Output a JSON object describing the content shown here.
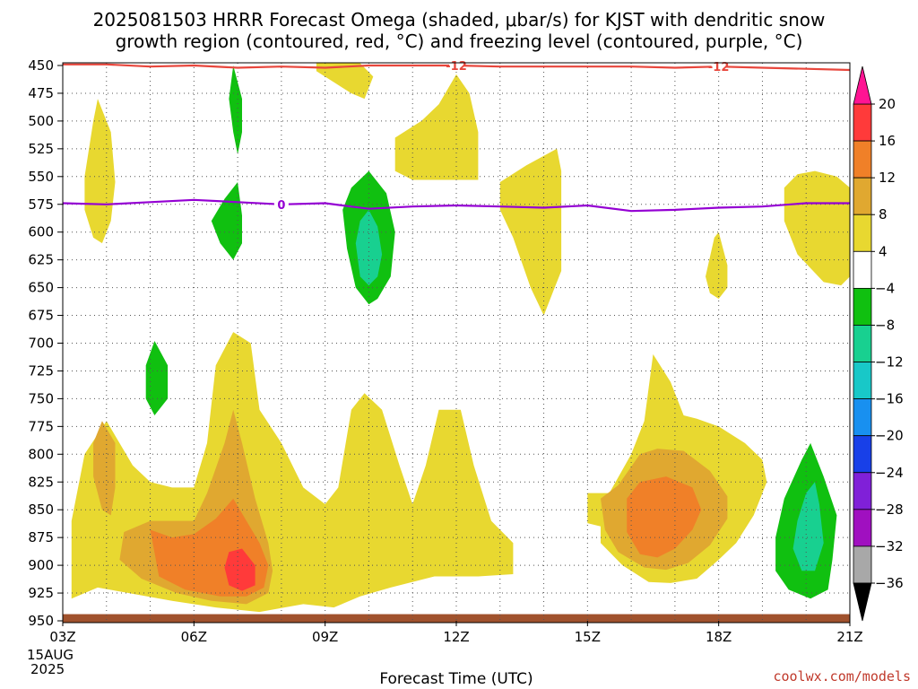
{
  "chart_data": {
    "type": "contour",
    "title_line1": "2025081503 HRRR Forecast Omega (shaded, μbar/s) for KJST with dendritic snow",
    "title_line2": "growth region (contoured, red, °C) and freezing level (contoured, purple, °C)",
    "xlabel": "Forecast Time (UTC)",
    "ylabel": "",
    "y_axis": {
      "scale": "pressure (hPa), inverted",
      "ylim": [
        950,
        450
      ],
      "ticks": [
        450,
        475,
        500,
        525,
        550,
        575,
        600,
        625,
        650,
        675,
        700,
        725,
        750,
        775,
        800,
        825,
        850,
        875,
        900,
        925,
        950
      ]
    },
    "x_axis": {
      "xlim_hours": [
        3,
        21
      ],
      "ticks": [
        {
          "hour": 3,
          "label": "03Z"
        },
        {
          "hour": 6,
          "label": "06Z"
        },
        {
          "hour": 9,
          "label": "09Z"
        },
        {
          "hour": 12,
          "label": "12Z"
        },
        {
          "hour": 15,
          "label": "15Z"
        },
        {
          "hour": 18,
          "label": "18Z"
        },
        {
          "hour": 21,
          "label": "21Z"
        }
      ],
      "date_line1": "15AUG",
      "date_line2": "2025"
    },
    "grid": true,
    "colorbar": {
      "placement": "right",
      "levels": [
        20,
        16,
        12,
        8,
        4,
        -4,
        -8,
        -12,
        -16,
        -20,
        -24,
        -28,
        -32,
        -36
      ],
      "colors": [
        "#ff3a3a",
        "#f08028",
        "#e0a830",
        "#e8d830",
        "#ffffff",
        "#10c010",
        "#18d090",
        "#18c8c8",
        "#1890f0",
        "#1840e8",
        "#8020d8",
        "#a010c0",
        "#a8a8a8"
      ],
      "top_arrow_color": "#ff1493",
      "bottom_arrow_color": "#000000"
    },
    "freezing_level": {
      "label": "0",
      "color": "#9400d3",
      "points": [
        [
          3,
          574
        ],
        [
          4,
          575
        ],
        [
          5,
          573
        ],
        [
          6,
          571
        ],
        [
          7,
          573
        ],
        [
          8,
          575
        ],
        [
          9,
          574
        ],
        [
          10,
          579
        ],
        [
          11,
          577
        ],
        [
          12,
          576
        ],
        [
          13,
          577
        ],
        [
          14,
          578
        ],
        [
          15,
          576
        ],
        [
          16,
          581
        ],
        [
          17,
          580
        ],
        [
          18,
          578
        ],
        [
          19,
          577
        ],
        [
          20,
          574
        ],
        [
          21,
          574
        ]
      ]
    },
    "dgz_line": {
      "label": "-12",
      "color": "#e8463c",
      "points": [
        [
          3,
          449
        ],
        [
          4,
          449
        ],
        [
          5,
          451
        ],
        [
          6,
          450
        ],
        [
          7,
          452
        ],
        [
          8,
          451
        ],
        [
          9,
          452
        ],
        [
          10,
          450
        ],
        [
          11,
          450
        ],
        [
          12,
          450
        ],
        [
          13,
          451
        ],
        [
          14,
          451
        ],
        [
          15,
          451
        ],
        [
          16,
          451
        ],
        [
          17,
          452
        ],
        [
          18,
          451
        ],
        [
          19,
          452
        ],
        [
          20,
          453
        ],
        [
          21,
          454
        ]
      ]
    },
    "omega_regions": [
      {
        "level": 4,
        "color": "#e8d830",
        "pts": [
          [
            3.2,
            930
          ],
          [
            3.2,
            860
          ],
          [
            3.5,
            800
          ],
          [
            4,
            770
          ],
          [
            4.6,
            810
          ],
          [
            5,
            825
          ],
          [
            5.5,
            830
          ],
          [
            6,
            830
          ],
          [
            6.3,
            790
          ],
          [
            6.5,
            720
          ],
          [
            6.9,
            690
          ],
          [
            7.3,
            700
          ],
          [
            7.5,
            760
          ],
          [
            8,
            790
          ],
          [
            8.5,
            830
          ],
          [
            9,
            845
          ],
          [
            9.3,
            830
          ],
          [
            9.6,
            760
          ],
          [
            9.9,
            745
          ],
          [
            10.3,
            760
          ],
          [
            10.7,
            810
          ],
          [
            11,
            845
          ],
          [
            11.3,
            810
          ],
          [
            11.6,
            760
          ],
          [
            12.1,
            760
          ],
          [
            12.4,
            810
          ],
          [
            12.8,
            860
          ],
          [
            13.3,
            880
          ],
          [
            13.3,
            908
          ],
          [
            12.5,
            910
          ],
          [
            11.5,
            910
          ],
          [
            10.5,
            920
          ],
          [
            9.8,
            928
          ],
          [
            9.2,
            938
          ],
          [
            8.5,
            935
          ],
          [
            7.5,
            942
          ],
          [
            6.5,
            938
          ],
          [
            5.5,
            932
          ],
          [
            4.5,
            925
          ],
          [
            3.8,
            920
          ]
        ]
      },
      {
        "level": 8,
        "color": "#e0a830",
        "pts": [
          [
            4.4,
            870
          ],
          [
            5,
            860
          ],
          [
            6,
            860
          ],
          [
            6.3,
            835
          ],
          [
            6.7,
            790
          ],
          [
            6.9,
            760
          ],
          [
            7.1,
            790
          ],
          [
            7.4,
            840
          ],
          [
            7.7,
            880
          ],
          [
            7.8,
            905
          ],
          [
            7.7,
            925
          ],
          [
            7.2,
            935
          ],
          [
            6.4,
            932
          ],
          [
            5.6,
            925
          ],
          [
            4.8,
            912
          ],
          [
            4.3,
            895
          ]
        ]
      },
      {
        "level": 12,
        "color": "#f08028",
        "pts": [
          [
            5,
            868
          ],
          [
            5.5,
            875
          ],
          [
            6,
            872
          ],
          [
            6.5,
            858
          ],
          [
            6.9,
            840
          ],
          [
            7.2,
            860
          ],
          [
            7.5,
            880
          ],
          [
            7.7,
            900
          ],
          [
            7.6,
            920
          ],
          [
            7.2,
            928
          ],
          [
            6.6,
            928
          ],
          [
            5.8,
            922
          ],
          [
            5.2,
            910
          ]
        ]
      },
      {
        "level": 16,
        "color": "#ff3a3a",
        "pts": [
          [
            6.8,
            888
          ],
          [
            7.1,
            885
          ],
          [
            7.4,
            900
          ],
          [
            7.4,
            918
          ],
          [
            7.1,
            923
          ],
          [
            6.8,
            918
          ],
          [
            6.7,
            902
          ]
        ]
      },
      {
        "level": 8,
        "color": "#e0a830",
        "pts": [
          [
            3.7,
            790
          ],
          [
            3.9,
            770
          ],
          [
            4.2,
            790
          ],
          [
            4.2,
            830
          ],
          [
            4.1,
            855
          ],
          [
            3.9,
            850
          ],
          [
            3.7,
            820
          ]
        ]
      },
      {
        "level": 4,
        "color": "#e8d830",
        "pts": [
          [
            15,
            835
          ],
          [
            15.5,
            835
          ],
          [
            16,
            800
          ],
          [
            16.3,
            770
          ],
          [
            16.5,
            710
          ],
          [
            16.9,
            735
          ],
          [
            17.2,
            765
          ],
          [
            17.5,
            768
          ],
          [
            18,
            775
          ],
          [
            18.6,
            790
          ],
          [
            19,
            805
          ],
          [
            19.1,
            825
          ],
          [
            18.8,
            855
          ],
          [
            18.4,
            880
          ],
          [
            18,
            895
          ],
          [
            17.5,
            912
          ],
          [
            16.9,
            916
          ],
          [
            16.4,
            915
          ],
          [
            15.8,
            900
          ],
          [
            15.3,
            880
          ],
          [
            15.3,
            865
          ],
          [
            15,
            862
          ]
        ]
      },
      {
        "level": 8,
        "color": "#e0a830",
        "pts": [
          [
            15.3,
            840
          ],
          [
            15.7,
            828
          ],
          [
            16.2,
            800
          ],
          [
            16.6,
            795
          ],
          [
            17.2,
            797
          ],
          [
            17.8,
            815
          ],
          [
            18.2,
            838
          ],
          [
            18.2,
            858
          ],
          [
            17.8,
            882
          ],
          [
            17.3,
            898
          ],
          [
            16.8,
            904
          ],
          [
            16.3,
            902
          ],
          [
            15.7,
            888
          ],
          [
            15.4,
            868
          ]
        ]
      },
      {
        "level": 12,
        "color": "#f08028",
        "pts": [
          [
            15.9,
            840
          ],
          [
            16.2,
            825
          ],
          [
            16.8,
            820
          ],
          [
            17.4,
            830
          ],
          [
            17.6,
            850
          ],
          [
            17.4,
            868
          ],
          [
            17,
            885
          ],
          [
            16.6,
            893
          ],
          [
            16.2,
            890
          ],
          [
            15.9,
            870
          ]
        ]
      },
      {
        "level": 4,
        "color": "#e8d830",
        "pts": [
          [
            3.5,
            550
          ],
          [
            3.7,
            500
          ],
          [
            3.8,
            480
          ],
          [
            4.1,
            510
          ],
          [
            4.2,
            555
          ],
          [
            4.1,
            590
          ],
          [
            3.9,
            610
          ],
          [
            3.7,
            605
          ],
          [
            3.5,
            580
          ]
        ]
      },
      {
        "level": 4,
        "color": "#e8d830",
        "pts": [
          [
            8.8,
            448
          ],
          [
            9.8,
            448
          ],
          [
            10.1,
            460
          ],
          [
            9.9,
            480
          ],
          [
            9.6,
            475
          ],
          [
            9.2,
            465
          ],
          [
            8.8,
            455
          ]
        ]
      },
      {
        "level": 4,
        "color": "#e8d830",
        "pts": [
          [
            10.6,
            515
          ],
          [
            11.2,
            500
          ],
          [
            11.6,
            485
          ],
          [
            12,
            458
          ],
          [
            12.3,
            475
          ],
          [
            12.5,
            510
          ],
          [
            12.5,
            553
          ],
          [
            11.8,
            553
          ],
          [
            11,
            553
          ],
          [
            10.6,
            545
          ]
        ]
      },
      {
        "level": 4,
        "color": "#e8d830",
        "pts": [
          [
            13,
            555
          ],
          [
            13.6,
            540
          ],
          [
            14.3,
            525
          ],
          [
            14.4,
            545
          ],
          [
            14.4,
            590
          ],
          [
            14.4,
            635
          ],
          [
            14.2,
            655
          ],
          [
            14,
            675
          ],
          [
            13.7,
            650
          ],
          [
            13.3,
            605
          ],
          [
            13,
            580
          ]
        ]
      },
      {
        "level": 4,
        "color": "#e8d830",
        "pts": [
          [
            17.7,
            640
          ],
          [
            17.9,
            605
          ],
          [
            18,
            600
          ],
          [
            18.2,
            630
          ],
          [
            18.2,
            650
          ],
          [
            18,
            660
          ],
          [
            17.8,
            655
          ]
        ]
      },
      {
        "level": 4,
        "color": "#e8d830",
        "pts": [
          [
            19.5,
            560
          ],
          [
            19.8,
            548
          ],
          [
            20.2,
            545
          ],
          [
            20.7,
            550
          ],
          [
            21,
            560
          ],
          [
            21,
            640
          ],
          [
            20.8,
            648
          ],
          [
            20.4,
            645
          ],
          [
            19.8,
            620
          ],
          [
            19.5,
            590
          ]
        ]
      },
      {
        "level": -4,
        "color": "#10c010",
        "pts": [
          [
            6.9,
            450
          ],
          [
            7.1,
            480
          ],
          [
            7.1,
            510
          ],
          [
            7,
            530
          ],
          [
            6.9,
            510
          ],
          [
            6.8,
            480
          ]
        ]
      },
      {
        "level": -4,
        "color": "#10c010",
        "pts": [
          [
            6.4,
            590
          ],
          [
            6.7,
            570
          ],
          [
            7,
            555
          ],
          [
            7.1,
            585
          ],
          [
            7.1,
            610
          ],
          [
            6.9,
            625
          ],
          [
            6.6,
            610
          ]
        ]
      },
      {
        "level": -4,
        "color": "#10c010",
        "pts": [
          [
            9.4,
            580
          ],
          [
            9.6,
            560
          ],
          [
            10,
            545
          ],
          [
            10.4,
            565
          ],
          [
            10.6,
            600
          ],
          [
            10.5,
            640
          ],
          [
            10.2,
            660
          ],
          [
            10,
            665
          ],
          [
            9.7,
            650
          ],
          [
            9.5,
            615
          ]
        ]
      },
      {
        "level": -8,
        "color": "#18d090",
        "pts": [
          [
            9.7,
            610
          ],
          [
            9.8,
            590
          ],
          [
            10,
            580
          ],
          [
            10.2,
            595
          ],
          [
            10.3,
            620
          ],
          [
            10.2,
            640
          ],
          [
            10,
            648
          ],
          [
            9.8,
            640
          ]
        ]
      },
      {
        "level": -4,
        "color": "#10c010",
        "pts": [
          [
            4.9,
            720
          ],
          [
            5.1,
            698
          ],
          [
            5.4,
            720
          ],
          [
            5.4,
            750
          ],
          [
            5.1,
            765
          ],
          [
            4.9,
            750
          ]
        ]
      },
      {
        "level": -4,
        "color": "#10c010",
        "pts": [
          [
            19.3,
            875
          ],
          [
            19.5,
            840
          ],
          [
            19.9,
            805
          ],
          [
            20.1,
            790
          ],
          [
            20.4,
            820
          ],
          [
            20.7,
            855
          ],
          [
            20.6,
            895
          ],
          [
            20.5,
            922
          ],
          [
            20.1,
            930
          ],
          [
            19.6,
            922
          ],
          [
            19.3,
            905
          ]
        ]
      },
      {
        "level": -8,
        "color": "#18d090",
        "pts": [
          [
            19.8,
            860
          ],
          [
            20,
            835
          ],
          [
            20.2,
            825
          ],
          [
            20.3,
            845
          ],
          [
            20.4,
            880
          ],
          [
            20.2,
            905
          ],
          [
            19.9,
            905
          ],
          [
            19.7,
            885
          ]
        ]
      }
    ],
    "ground": {
      "color": "#a0522d",
      "top_pressure": 944
    }
  },
  "credit": "coolwx.com/models"
}
